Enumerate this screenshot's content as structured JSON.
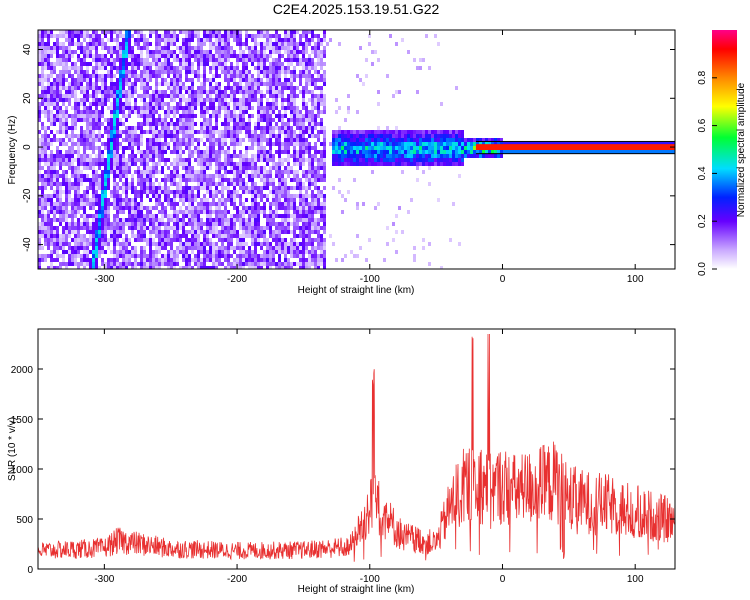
{
  "title": "C2E4.2025.153.19.51.G22",
  "chart_data": [
    {
      "type": "heatmap",
      "xlabel": "Height of straight line (km)",
      "ylabel": "Frequency (Hz)",
      "xlim": [
        -350,
        130
      ],
      "ylim": [
        -50,
        48
      ],
      "x_ticks": [
        -300,
        -200,
        -100,
        0,
        100
      ],
      "y_ticks": [
        -40,
        -20,
        0,
        20,
        40
      ],
      "colorbar": {
        "label": "Normalized spectral amplitude",
        "range": [
          0,
          1
        ],
        "ticks": [
          0.0,
          0.2,
          0.4,
          0.6,
          0.8
        ],
        "colormap": "rainbow (white-violet-blue-cyan-green-yellow-orange-red-magenta)"
      },
      "features": {
        "noise_band_x": [
          -350,
          -135
        ],
        "tilted_streak": {
          "x_at_ymin": -310,
          "x_at_ymax": -283,
          "y_range": [
            -50,
            48
          ]
        },
        "signal_line": {
          "x_range": [
            -130,
            130
          ],
          "frequency_hz": 0
        }
      }
    },
    {
      "type": "line",
      "xlabel": "Height of straight line (km)",
      "ylabel": "SNR (10 * v/v)",
      "xlim": [
        -350,
        130
      ],
      "ylim": [
        0,
        2400
      ],
      "x_ticks": [
        -300,
        -200,
        -100,
        0,
        100
      ],
      "y_ticks": [
        0,
        500,
        1000,
        1500,
        2000
      ],
      "color": "#e83030",
      "envelope": {
        "x": [
          -350,
          -300,
          -290,
          -250,
          -200,
          -150,
          -115,
          -105,
          -95,
          -85,
          -75,
          -60,
          -50,
          -40,
          -30,
          -20,
          -10,
          0,
          10,
          20,
          30,
          40,
          50,
          60,
          80,
          100,
          130
        ],
        "y": [
          270,
          310,
          420,
          300,
          270,
          280,
          330,
          700,
          1100,
          700,
          480,
          420,
          380,
          900,
          1200,
          1350,
          1150,
          1250,
          1150,
          1200,
          1250,
          1300,
          1050,
          1000,
          950,
          850,
          700
        ]
      }
    }
  ]
}
